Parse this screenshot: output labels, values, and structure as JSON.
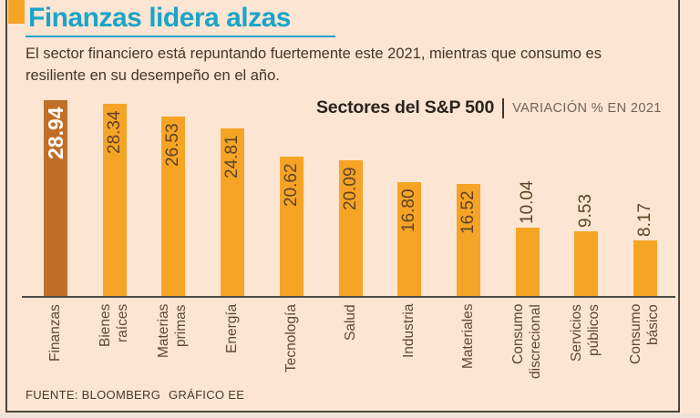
{
  "title": "Finanzas lidera alzas",
  "subtitle_line1": "El sector financiero está repuntando fuertemente este 2021, mientras que consumo es",
  "subtitle_line2": "resiliente en su desempeño en el año.",
  "legend": {
    "title": "Sectores del S&P 500",
    "subtitle": "VARIACIÓN % EN 2021"
  },
  "footer": {
    "source": "FUENTE: BLOOMBERG",
    "credit": "GRÁFICO EE"
  },
  "colors": {
    "background": "#fce5d2",
    "accent": "#f6a426",
    "bar": "#f6a426",
    "bar_highlight": "#c16e28",
    "title": "#1ba4c8",
    "text_dark": "#44362a",
    "text_muted": "#70635a",
    "value_label": "#5e4326",
    "axis_label": "#5e4733",
    "axis_line": "#4f4a44",
    "border": "#4c463f"
  },
  "chart_data": {
    "type": "bar",
    "title": "Sectores del S&P 500",
    "subtitle": "VARIACIÓN % EN 2021",
    "categories": [
      "Finanzas",
      "Bienes\nraíces",
      "Materias\nprimas",
      "Energía",
      "Tecnología",
      "Salud",
      "Industria",
      "Materiales",
      "Consumo\ndiscrecional",
      "Servicios\npúblicos",
      "Consumo\nbásico"
    ],
    "values": [
      28.94,
      28.34,
      26.53,
      24.81,
      20.62,
      20.09,
      16.8,
      16.52,
      10.04,
      9.53,
      8.17
    ],
    "value_format": "2-decimals",
    "highlight_index": 0,
    "orientation": "vertical",
    "grid": false,
    "ylim": [
      0,
      30
    ],
    "value_label_position": "inside-top, above-top for short bars",
    "x_label_rotation": -90
  }
}
